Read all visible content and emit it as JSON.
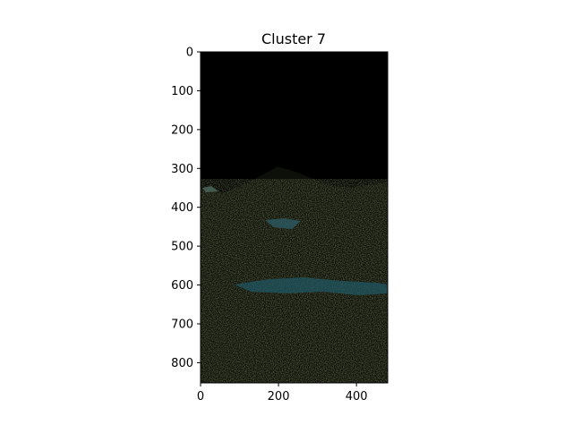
{
  "chart_data": {
    "type": "heatmap",
    "title": "Cluster 7",
    "xlabel": "",
    "ylabel": "",
    "xlim": [
      0,
      480
    ],
    "ylim": [
      852,
      0
    ],
    "x_ticks": [
      0,
      200,
      400
    ],
    "y_ticks": [
      0,
      100,
      200,
      300,
      400,
      500,
      600,
      700,
      800
    ],
    "image_description_colors": {
      "background": "#000000",
      "water": "#1f5a66",
      "vegetation": "#2a3318",
      "ridge": "#3a3d2c"
    },
    "grid": false,
    "legend": "none"
  }
}
